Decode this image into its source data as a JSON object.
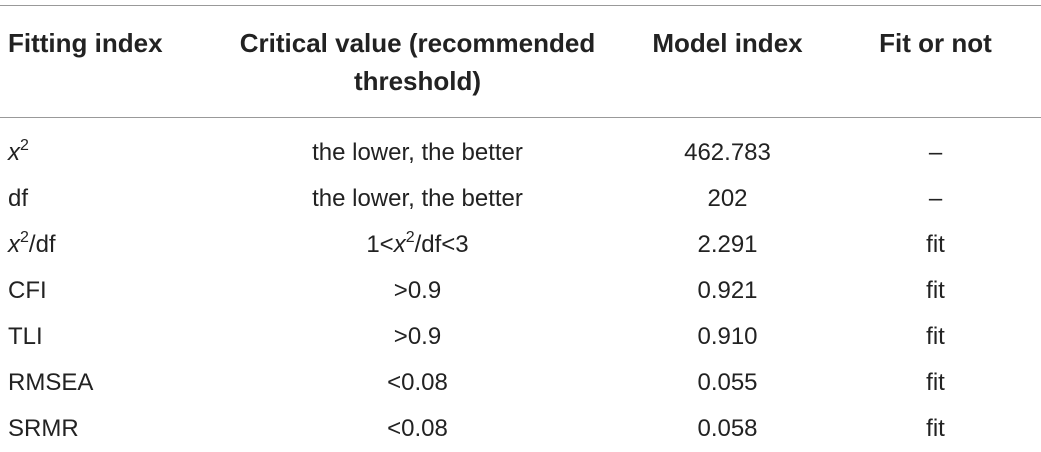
{
  "table": {
    "header": [
      "Fitting index",
      "Critical value (recommended threshold)",
      "Model index",
      "Fit or not"
    ],
    "rows": [
      [
        [
          {
            "text": "x",
            "italic": true
          },
          {
            "text": "2",
            "sup": true
          }
        ],
        "the lower, the better",
        "462.783",
        "–"
      ],
      [
        "df",
        "the lower, the better",
        "202",
        "–"
      ],
      [
        [
          {
            "text": "x",
            "italic": true
          },
          {
            "text": "2",
            "sup": true
          },
          {
            "text": "/df"
          }
        ],
        [
          {
            "text": "1<"
          },
          {
            "text": "x",
            "italic": true
          },
          {
            "text": "2",
            "sup": true
          },
          {
            "text": "/df<3"
          }
        ],
        "2.291",
        "fit"
      ],
      [
        "CFI",
        ">0.9",
        "0.921",
        "fit"
      ],
      [
        "TLI",
        ">0.9",
        "0.910",
        "fit"
      ],
      [
        "RMSEA",
        "<0.08",
        "0.055",
        "fit"
      ],
      [
        "SRMR",
        "<0.08",
        "0.058",
        "fit"
      ]
    ]
  }
}
